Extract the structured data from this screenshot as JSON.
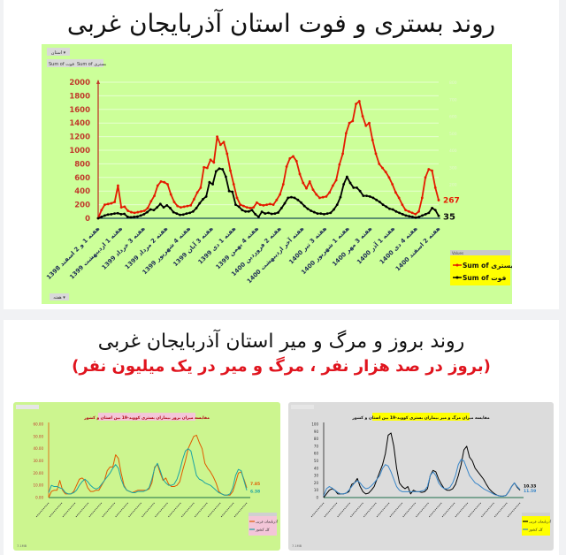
{
  "section1": {
    "title": "روند بستری و فوت استان آذربایجان غربی",
    "filter_button": "استان ▾",
    "field_buttons": [
      "Sum of فوت",
      "Sum of بستری"
    ],
    "bottom_filter": "هفته ▾",
    "legend_title": "Values",
    "colors": {
      "bg": "#ccff99",
      "hosp": "#e41b00",
      "death": "#000000",
      "axis_label": "#c0392b"
    }
  },
  "section2": {
    "title": "روند بروز و مرگ و میر استان آذربایجان غربی",
    "subtitle": "(بروز در صد هزار نفر ، مرگ و میر در یک میلیون نفر)",
    "subtitle_color": "#e0141e"
  },
  "chart_data": [
    {
      "type": "line",
      "title": "روند بستری و فوت استان آذربایجان غربی",
      "ylim": [
        0,
        2000
      ],
      "yticks": [
        0,
        200,
        400,
        600,
        800,
        1000,
        1200,
        1400,
        1600,
        1800,
        2000
      ],
      "y2lim": [
        0,
        800
      ],
      "y2ticks": [
        0,
        100,
        200,
        300,
        400,
        500,
        600,
        700,
        800
      ],
      "categories": [
        "هفته 1 و 2 اسفند 1398",
        "هفته 1 اردیبهشت 1399",
        "هفته 3 خرداد 1399",
        "هفته 2 مرداد 1399",
        "هفته 4 شهریور 1399",
        "هفته 3 آبان 1399",
        "هفته 1 دی 1399",
        "هفته 4 بهمن 1399",
        "هفته 2 فروردین 1400",
        "هفته آخر اردیبهشت 1400",
        "هفته 3 تیر 1400",
        "هفته 1 شهریور 1400",
        "هفته 3 مهر 1400",
        "هفته 1 آذر 1400",
        "هفته 4 دی 1400",
        "هفته 2 اسفند 1400"
      ],
      "series": [
        {
          "name": "Sum of بستری",
          "end_label": "267",
          "values": [
            0,
            120,
            200,
            210,
            220,
            240,
            480,
            160,
            170,
            110,
            90,
            80,
            90,
            100,
            110,
            150,
            250,
            330,
            480,
            540,
            530,
            500,
            350,
            240,
            180,
            160,
            170,
            180,
            190,
            280,
            380,
            450,
            750,
            740,
            860,
            820,
            1200,
            1080,
            1120,
            950,
            700,
            500,
            300,
            200,
            180,
            160,
            150,
            160,
            230,
            200,
            190,
            200,
            210,
            200,
            270,
            350,
            500,
            760,
            880,
            910,
            840,
            650,
            520,
            440,
            540,
            420,
            350,
            300,
            310,
            320,
            380,
            480,
            560,
            790,
            950,
            1250,
            1400,
            1430,
            1680,
            1720,
            1500,
            1360,
            1400,
            1150,
            950,
            800,
            740,
            680,
            600,
            500,
            380,
            300,
            200,
            120,
            100,
            80,
            60,
            100,
            300,
            600,
            720,
            700,
            450,
            267
          ]
        },
        {
          "name": "Sum of فوت",
          "end_label": "35",
          "values": [
            0,
            20,
            40,
            55,
            60,
            70,
            75,
            60,
            65,
            20,
            15,
            20,
            25,
            40,
            60,
            90,
            130,
            120,
            160,
            210,
            160,
            190,
            150,
            90,
            70,
            50,
            55,
            70,
            80,
            100,
            150,
            220,
            280,
            320,
            530,
            500,
            690,
            730,
            720,
            610,
            400,
            390,
            200,
            170,
            120,
            100,
            100,
            120,
            60,
            20,
            95,
            70,
            80,
            65,
            70,
            85,
            150,
            220,
            300,
            310,
            300,
            270,
            230,
            180,
            140,
            110,
            90,
            70,
            70,
            60,
            70,
            80,
            130,
            200,
            310,
            500,
            610,
            520,
            450,
            450,
            400,
            330,
            330,
            320,
            300,
            270,
            240,
            200,
            170,
            140,
            130,
            100,
            80,
            60,
            40,
            30,
            20,
            10,
            20,
            40,
            60,
            80,
            150,
            120,
            35
          ]
        }
      ]
    },
    {
      "type": "line",
      "title": "مقایسه میزان بروز بیماران بستری کووید-19 بین استان و کشور",
      "ylim": [
        0,
        60
      ],
      "yticks": [
        "0.00",
        "10.00",
        "20.00",
        "30.00",
        "40.00",
        "50.00",
        "60.00"
      ],
      "series": [
        {
          "name": "آذربایجان غربی",
          "color": "#e05a00",
          "end_label": "7.85",
          "values": [
            0,
            5,
            6,
            6,
            14,
            6,
            3,
            3,
            3,
            5,
            10,
            15,
            16,
            14,
            8,
            5,
            5,
            6,
            6,
            10,
            14,
            22,
            25,
            25,
            35,
            32,
            20,
            10,
            6,
            5,
            4,
            5,
            6,
            6,
            6,
            6,
            7,
            12,
            25,
            27,
            20,
            14,
            16,
            11,
            9,
            9,
            10,
            13,
            22,
            30,
            40,
            45,
            50,
            51,
            45,
            40,
            28,
            24,
            21,
            17,
            12,
            5,
            3,
            2,
            2,
            2,
            5,
            12,
            20,
            21,
            15,
            8
          ]
        },
        {
          "name": "کل کشور",
          "color": "#1aa3a3",
          "end_label": "6.38",
          "values": [
            4,
            10,
            9,
            9,
            8,
            7,
            4,
            3,
            3,
            4,
            6,
            10,
            13,
            15,
            13,
            10,
            8,
            7,
            8,
            11,
            14,
            17,
            20,
            24,
            27,
            24,
            15,
            9,
            6,
            5,
            4,
            4,
            5,
            5,
            5,
            6,
            8,
            15,
            24,
            28,
            22,
            15,
            12,
            10,
            10,
            11,
            15,
            22,
            31,
            38,
            40,
            38,
            28,
            18,
            15,
            14,
            12,
            11,
            10,
            8,
            6,
            4,
            3,
            2,
            2,
            3,
            8,
            18,
            23,
            22,
            14,
            6
          ]
        }
      ]
    },
    {
      "type": "line",
      "title": "مقایسه میزان مرگ و میر بیماران بستری کووید-19 بین استان و کشور",
      "ylim": [
        0,
        100
      ],
      "yticks": [
        0,
        10,
        20,
        30,
        40,
        50,
        60,
        70,
        80,
        90,
        100
      ],
      "series": [
        {
          "name": "آذربایجان غربی",
          "color": "#000000",
          "end_label": "10.33",
          "values": [
            0,
            5,
            10,
            12,
            10,
            5,
            5,
            5,
            6,
            8,
            18,
            20,
            26,
            15,
            8,
            5,
            6,
            10,
            15,
            25,
            35,
            45,
            60,
            85,
            88,
            70,
            40,
            20,
            15,
            12,
            15,
            5,
            10,
            8,
            8,
            7,
            8,
            12,
            30,
            37,
            35,
            25,
            18,
            12,
            10,
            10,
            12,
            18,
            30,
            45,
            65,
            70,
            55,
            50,
            40,
            35,
            30,
            25,
            18,
            12,
            8,
            5,
            3,
            2,
            2,
            3,
            8,
            15,
            20,
            14,
            10
          ]
        },
        {
          "name": "کل کشور",
          "color": "#3a86c8",
          "end_label": "11.59",
          "values": [
            2,
            12,
            15,
            13,
            10,
            7,
            5,
            5,
            6,
            10,
            15,
            20,
            23,
            20,
            15,
            12,
            13,
            16,
            20,
            25,
            30,
            40,
            45,
            43,
            35,
            25,
            15,
            10,
            8,
            8,
            8,
            8,
            8,
            8,
            8,
            9,
            10,
            15,
            30,
            35,
            30,
            20,
            15,
            12,
            12,
            14,
            20,
            30,
            45,
            52,
            50,
            40,
            30,
            25,
            20,
            18,
            15,
            12,
            10,
            8,
            6,
            4,
            3,
            2,
            2,
            3,
            8,
            15,
            20,
            15,
            11
          ]
        }
      ]
    }
  ]
}
